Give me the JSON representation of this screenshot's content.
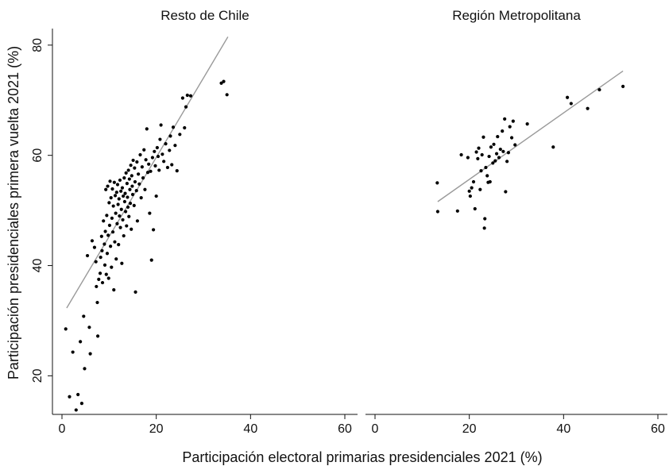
{
  "chart_data": [
    {
      "type": "scatter",
      "title": "Resto de Chile",
      "xlabel": "Participación electoral primarias presidenciales 2021 (%)",
      "ylabel": "Participación presidenciales primera vuelta 2021 (%)",
      "xlim": [
        0,
        60
      ],
      "ylim": [
        13,
        83
      ],
      "xticks": [
        "0",
        "20",
        "40",
        "60"
      ],
      "yticks": [
        "20",
        "40",
        "60",
        "80"
      ],
      "grid": false,
      "fit_line": {
        "x": [
          1,
          35.2
        ],
        "y": [
          32.3,
          81.5
        ]
      },
      "points": [
        [
          0.8,
          28.5
        ],
        [
          1.6,
          16.2
        ],
        [
          2.3,
          24.3
        ],
        [
          3,
          13.8
        ],
        [
          3.4,
          16.6
        ],
        [
          3.9,
          26.2
        ],
        [
          4.2,
          15
        ],
        [
          4.6,
          30.8
        ],
        [
          4.8,
          21.3
        ],
        [
          5.4,
          41.8
        ],
        [
          5.8,
          28.8
        ],
        [
          6,
          24
        ],
        [
          6.4,
          44.5
        ],
        [
          6.9,
          43.3
        ],
        [
          7.2,
          40.7
        ],
        [
          7.3,
          36.2
        ],
        [
          7.5,
          33.3
        ],
        [
          7.6,
          27.2
        ],
        [
          7.8,
          37.5
        ],
        [
          8.1,
          38.6
        ],
        [
          8.2,
          41.5
        ],
        [
          8.4,
          45.3
        ],
        [
          8.5,
          42.7
        ],
        [
          8.6,
          36.9
        ],
        [
          8.8,
          48.1
        ],
        [
          9,
          43.9
        ],
        [
          9.1,
          40.1
        ],
        [
          9.2,
          46.2
        ],
        [
          9.3,
          53.8
        ],
        [
          9.4,
          38.4
        ],
        [
          9.5,
          49.1
        ],
        [
          9.6,
          42.2
        ],
        [
          9.7,
          54.4
        ],
        [
          9.8,
          45.5
        ],
        [
          9.9,
          37.7
        ],
        [
          10,
          51.4
        ],
        [
          10.1,
          47.3
        ],
        [
          10.2,
          55.3
        ],
        [
          10.3,
          43.5
        ],
        [
          10.4,
          52.3
        ],
        [
          10.5,
          39.7
        ],
        [
          10.6,
          48.6
        ],
        [
          10.7,
          53.9
        ],
        [
          10.8,
          46.1
        ],
        [
          10.9,
          50.8
        ],
        [
          11,
          35.6
        ],
        [
          11.1,
          55.1
        ],
        [
          11.2,
          44.3
        ],
        [
          11.3,
          52.7
        ],
        [
          11.4,
          49.5
        ],
        [
          11.5,
          41.2
        ],
        [
          11.6,
          53.3
        ],
        [
          11.7,
          47.6
        ],
        [
          11.8,
          54.7
        ],
        [
          11.9,
          51.1
        ],
        [
          12,
          43.8
        ],
        [
          12.1,
          52.1
        ],
        [
          12.2,
          49
        ],
        [
          12.3,
          55.5
        ],
        [
          12.4,
          46.9
        ],
        [
          12.5,
          53.5
        ],
        [
          12.6,
          50.2
        ],
        [
          12.7,
          40.4
        ],
        [
          12.8,
          54.1
        ],
        [
          12.9,
          48.3
        ],
        [
          13,
          52.6
        ],
        [
          13.1,
          45.4
        ],
        [
          13.2,
          55.9
        ],
        [
          13.3,
          51.6
        ],
        [
          13.4,
          53.1
        ],
        [
          13.5,
          49.8
        ],
        [
          13.6,
          56.8
        ],
        [
          13.7,
          47.2
        ],
        [
          13.8,
          54.9
        ],
        [
          13.9,
          52.4
        ],
        [
          14,
          50.6
        ],
        [
          14.1,
          57.3
        ],
        [
          14.2,
          48.9
        ],
        [
          14.3,
          55.7
        ],
        [
          14.4,
          53.8
        ],
        [
          14.5,
          51.3
        ],
        [
          14.6,
          58.2
        ],
        [
          14.7,
          46.6
        ],
        [
          14.8,
          56.3
        ],
        [
          14.9,
          54.4
        ],
        [
          15,
          52.9
        ],
        [
          15.1,
          59.1
        ],
        [
          15.3,
          50.9
        ],
        [
          15.4,
          57.7
        ],
        [
          15.5,
          55.2
        ],
        [
          15.6,
          35.2
        ],
        [
          15.8,
          53.6
        ],
        [
          15.9,
          58.8
        ],
        [
          16,
          48.1
        ],
        [
          16.2,
          56.6
        ],
        [
          16.4,
          54.8
        ],
        [
          16.6,
          60.1
        ],
        [
          16.8,
          52.3
        ],
        [
          17,
          57.9
        ],
        [
          17.2,
          55.9
        ],
        [
          17.4,
          61
        ],
        [
          17.6,
          53.8
        ],
        [
          17.8,
          59.2
        ],
        [
          18,
          64.8
        ],
        [
          18.2,
          56.9
        ],
        [
          18.4,
          58.4
        ],
        [
          18.6,
          49.5
        ],
        [
          18.8,
          57.1
        ],
        [
          19,
          41
        ],
        [
          19.2,
          59.6
        ],
        [
          19.4,
          46.5
        ],
        [
          19.6,
          60.7
        ],
        [
          19.8,
          58.1
        ],
        [
          20,
          52.6
        ],
        [
          20.2,
          61.4
        ],
        [
          20.4,
          59.8
        ],
        [
          20.6,
          57.3
        ],
        [
          20.8,
          62.9
        ],
        [
          21,
          65.5
        ],
        [
          21.3,
          60.2
        ],
        [
          21.6,
          58.9
        ],
        [
          22,
          62.1
        ],
        [
          22.4,
          57.8
        ],
        [
          22.8,
          60.9
        ],
        [
          23,
          63.5
        ],
        [
          23.3,
          58.3
        ],
        [
          23.6,
          65.1
        ],
        [
          24,
          61.8
        ],
        [
          24.4,
          57.2
        ],
        [
          25,
          63.8
        ],
        [
          25.6,
          70.4
        ],
        [
          26,
          65
        ],
        [
          26.3,
          68.8
        ],
        [
          26.6,
          70.9
        ],
        [
          27.3,
          70.8
        ],
        [
          33.8,
          73.1
        ],
        [
          34.3,
          73.4
        ],
        [
          35,
          71
        ]
      ]
    },
    {
      "type": "scatter",
      "title": "Región Metropolitana",
      "xlim": [
        0,
        60
      ],
      "ylim": [
        13,
        83
      ],
      "xticks": [
        "0",
        "20",
        "40",
        "60"
      ],
      "grid": false,
      "fit_line": {
        "x": [
          13.3,
          52.6
        ],
        "y": [
          51.6,
          75.3
        ]
      },
      "points": [
        [
          13.2,
          55
        ],
        [
          13.3,
          49.8
        ],
        [
          17.5,
          49.9
        ],
        [
          18.3,
          60.1
        ],
        [
          19.7,
          59.6
        ],
        [
          20,
          53.5
        ],
        [
          20.2,
          52.6
        ],
        [
          20.5,
          54.1
        ],
        [
          20.9,
          55.2
        ],
        [
          21.2,
          50.3
        ],
        [
          21.5,
          60.6
        ],
        [
          21.8,
          59.4
        ],
        [
          22,
          61.3
        ],
        [
          22.3,
          53.8
        ],
        [
          22.5,
          57.2
        ],
        [
          22.7,
          60.1
        ],
        [
          23,
          63.3
        ],
        [
          23.2,
          46.8
        ],
        [
          23.3,
          48.5
        ],
        [
          23.5,
          57.8
        ],
        [
          23.8,
          56.3
        ],
        [
          24,
          55.1
        ],
        [
          24.2,
          59.8
        ],
        [
          24.4,
          55.2
        ],
        [
          24.6,
          61.5
        ],
        [
          25,
          58.6
        ],
        [
          25.2,
          62
        ],
        [
          25.5,
          59
        ],
        [
          25.8,
          60.3
        ],
        [
          26,
          63.4
        ],
        [
          26.3,
          59.6
        ],
        [
          26.6,
          61.1
        ],
        [
          27,
          64.4
        ],
        [
          27.2,
          60.7
        ],
        [
          27.5,
          66.6
        ],
        [
          27.7,
          53.4
        ],
        [
          28,
          58.9
        ],
        [
          28.3,
          60.5
        ],
        [
          28.6,
          65.2
        ],
        [
          29,
          63.2
        ],
        [
          29.3,
          66.2
        ],
        [
          29.7,
          61.9
        ],
        [
          32.3,
          65.7
        ],
        [
          37.8,
          61.5
        ],
        [
          40.8,
          70.5
        ],
        [
          41.6,
          69.4
        ],
        [
          45.1,
          68.5
        ],
        [
          47.6,
          71.9
        ],
        [
          52.6,
          72.5
        ]
      ]
    }
  ]
}
